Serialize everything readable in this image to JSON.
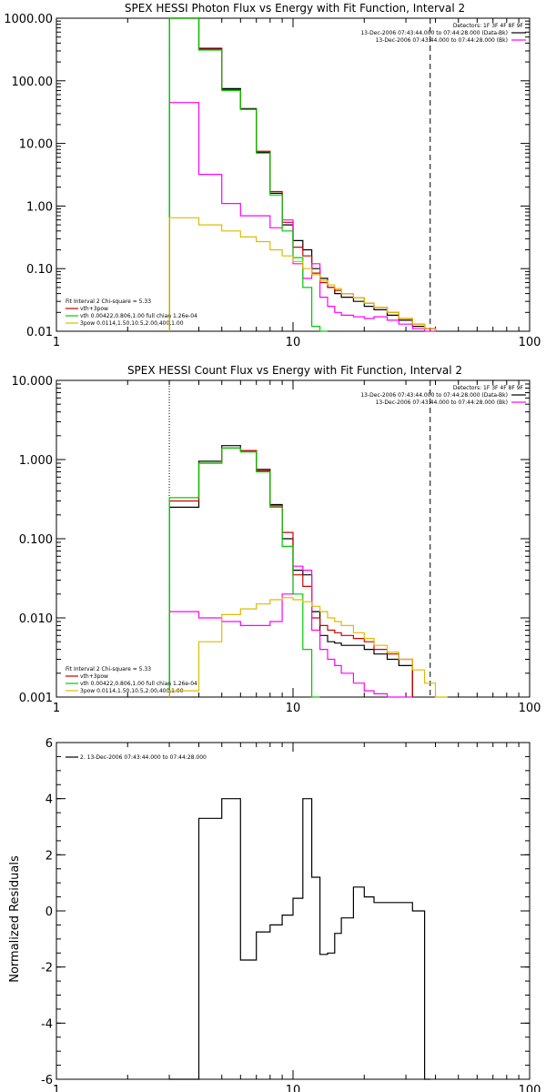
{
  "chart_data": [
    {
      "type": "line",
      "title": "SPEX HESSI Photon Flux vs Energy with Fit Function, Interval 2",
      "xscale": "log",
      "yscale": "log",
      "xlim": [
        1,
        100
      ],
      "ylim": [
        0.01,
        1000
      ],
      "xticks": [
        1,
        10,
        100
      ],
      "xtick_labels": [
        "1",
        "10",
        "100"
      ],
      "yticks": [
        0.01,
        0.1,
        1,
        10,
        100,
        1000
      ],
      "ytick_labels": [
        "0.01",
        "0.10",
        "1.00",
        "10.00",
        "100.00",
        "1000.00"
      ],
      "edges": [
        3,
        4,
        5,
        6,
        7,
        8,
        9,
        10,
        11,
        12,
        13,
        14,
        15,
        16,
        18,
        20,
        22,
        25,
        28,
        32,
        36,
        40
      ],
      "series": [
        {
          "name": "",
          "color": "#000000",
          "values": [
            1000,
            330,
            75,
            36,
            7.2,
            1.6,
            0.5,
            0.28,
            0.2,
            0.1,
            0.07,
            0.05,
            0.04,
            0.035,
            0.03,
            0.025,
            0.022,
            0.018,
            0.015,
            0.012,
            0.011
          ]
        },
        {
          "name": "",
          "color": "#cc0000",
          "values": [
            1000,
            320,
            72,
            35,
            7.5,
            1.7,
            0.55,
            0.22,
            0.16,
            0.085,
            0.06,
            0.05,
            0.045,
            0.04,
            0.034,
            0.028,
            0.024,
            0.02,
            0.016,
            0.013,
            0.011
          ]
        },
        {
          "name": "",
          "color": "#ff00ff",
          "values": [
            45,
            3.2,
            1.1,
            0.7,
            0.7,
            0.45,
            0.6,
            0.12,
            0.07,
            0.12,
            0.035,
            0.025,
            0.02,
            0.018,
            0.017,
            0.016,
            0.017,
            0.015,
            0.013,
            0.011,
            0.01
          ]
        },
        {
          "name": "",
          "color": "#00cc00",
          "values": [
            1000,
            310,
            70,
            35,
            7.0,
            1.5,
            0.4,
            0.15,
            0.05,
            0.012,
            0.005,
            null,
            null,
            null,
            null,
            null,
            null,
            null,
            null,
            null,
            null
          ]
        },
        {
          "name": "",
          "color": "#ddbb00",
          "values": [
            0.65,
            0.5,
            0.4,
            0.32,
            0.27,
            0.2,
            0.16,
            0.13,
            0.1,
            0.08,
            0.065,
            0.055,
            0.048,
            0.04,
            0.034,
            0.028,
            0.024,
            0.02,
            0.016,
            0.013,
            0.011
          ]
        }
      ],
      "vlines": [
        {
          "x": 3,
          "style": "dotted"
        },
        {
          "x": 38,
          "style": "dashed"
        }
      ],
      "legend_topright": [
        "Detectors: 1F 3F 4F 8F 9F",
        "13-Dec-2006 07:43:44.000 to 07:44:28.000 (Data-Bk)",
        "13-Dec-2006 07:43:44.000 to 07:44:28.000 (Bk)"
      ],
      "legend_bottomleft": [
        "Fit Interval 2   Chi-square = 5.33",
        "vth+3pow",
        "vth 0.00422,0.806,1.00  full chian 1.26e-04",
        "3pow 0.0114,1.50,10.5,2.00,400,1.00"
      ]
    },
    {
      "type": "line",
      "title": "SPEX HESSI Count Flux vs Energy with Fit Function, Interval 2",
      "xscale": "log",
      "yscale": "log",
      "xlim": [
        1,
        100
      ],
      "ylim": [
        0.001,
        10
      ],
      "xticks": [
        1,
        10,
        100
      ],
      "xtick_labels": [
        "1",
        "10",
        "100"
      ],
      "yticks": [
        0.001,
        0.01,
        0.1,
        1,
        10
      ],
      "ytick_labels": [
        "0.001",
        "0.010",
        "0.100",
        "1.000",
        "10.000"
      ],
      "edges": [
        3,
        4,
        5,
        6,
        7,
        8,
        9,
        10,
        11,
        12,
        13,
        14,
        15,
        16,
        18,
        20,
        22,
        25,
        28,
        32,
        36,
        40,
        45,
        50
      ],
      "series": [
        {
          "name": "",
          "color": "#000000",
          "values": [
            0.25,
            0.95,
            1.5,
            1.3,
            0.75,
            0.27,
            0.1,
            0.04,
            0.035,
            0.012,
            0.006,
            0.005,
            0.0048,
            0.0045,
            0.0045,
            0.004,
            0.0035,
            0.003,
            0.0025,
            null,
            null,
            null
          ]
        },
        {
          "name": "",
          "color": "#cc0000",
          "values": [
            0.3,
            0.9,
            1.4,
            1.3,
            0.72,
            0.26,
            0.12,
            0.035,
            0.025,
            0.01,
            0.008,
            0.007,
            0.0065,
            0.006,
            0.0055,
            0.005,
            0.004,
            0.0035,
            0.003,
            null,
            null,
            null
          ]
        },
        {
          "name": "",
          "color": "#ff00ff",
          "values": [
            0.012,
            0.01,
            0.009,
            0.008,
            0.008,
            0.009,
            0.02,
            0.045,
            0.04,
            0.007,
            0.004,
            0.003,
            0.0025,
            0.002,
            0.0015,
            0.0012,
            0.0011,
            0.001,
            0.001,
            null,
            null,
            null
          ]
        },
        {
          "name": "",
          "color": "#00cc00",
          "values": [
            0.33,
            0.9,
            1.4,
            1.25,
            0.7,
            0.25,
            0.08,
            0.02,
            0.004,
            0.001,
            null,
            null,
            null,
            null,
            null,
            null,
            null,
            null,
            null,
            null,
            null,
            null
          ]
        },
        {
          "name": "",
          "color": "#ddbb00",
          "values": [
            0.0012,
            0.005,
            0.011,
            0.013,
            0.015,
            0.017,
            0.018,
            0.017,
            0.016,
            0.014,
            0.012,
            0.01,
            0.009,
            0.008,
            0.0065,
            0.0055,
            0.0045,
            0.0037,
            0.003,
            0.0022,
            0.0015,
            0.001
          ]
        }
      ],
      "vlines": [
        {
          "x": 3,
          "style": "dotted"
        },
        {
          "x": 38,
          "style": "dashed"
        }
      ],
      "legend_topright": [
        "Detectors: 1F 3F 4F 8F 9F",
        "13-Dec-2006 07:43:44.000 to 07:44:28.000 (Data-Bk)",
        "13-Dec-2006 07:43:44.000 to 07:44:28.000 (Bk)"
      ],
      "legend_bottomleft": [
        "Fit Interval 2   Chi-square = 5.33",
        "vth+3pow",
        "vth 0.00422,0.806,1.00  full chian 1.26e-04",
        "3pow 0.0114,1.50,10.5,2.00,400,1.00"
      ]
    },
    {
      "type": "line",
      "title": "",
      "xscale": "log",
      "yscale": "linear",
      "xlim": [
        1,
        100
      ],
      "ylim": [
        -6,
        6
      ],
      "xticks": [
        1,
        10,
        100
      ],
      "xtick_labels": [
        "1",
        "10",
        "100"
      ],
      "yticks": [
        -6,
        -4,
        -2,
        0,
        2,
        4,
        6
      ],
      "ytick_labels": [
        "-6",
        "-4",
        "-2",
        "0",
        "2",
        "4",
        "6"
      ],
      "ylabel": "Normalized Residuals",
      "edges": [
        3,
        4,
        5,
        6,
        7,
        8,
        9,
        10,
        11,
        12,
        13,
        14,
        15,
        16,
        18,
        20,
        22,
        25,
        28,
        32,
        36,
        38
      ],
      "series": [
        {
          "name": "",
          "color": "#000000",
          "values": [
            -6,
            3.3,
            4.0,
            -1.75,
            -0.75,
            -0.5,
            -0.15,
            0.45,
            4.0,
            1.2,
            -1.55,
            -1.5,
            -0.8,
            -0.25,
            0.85,
            0.5,
            0.3,
            0.3,
            0.3,
            0.0,
            -6
          ]
        }
      ],
      "legend_topleft": [
        "2. 13-Dec-2006 07:43:44.000 to 07:44:28.000"
      ]
    }
  ]
}
